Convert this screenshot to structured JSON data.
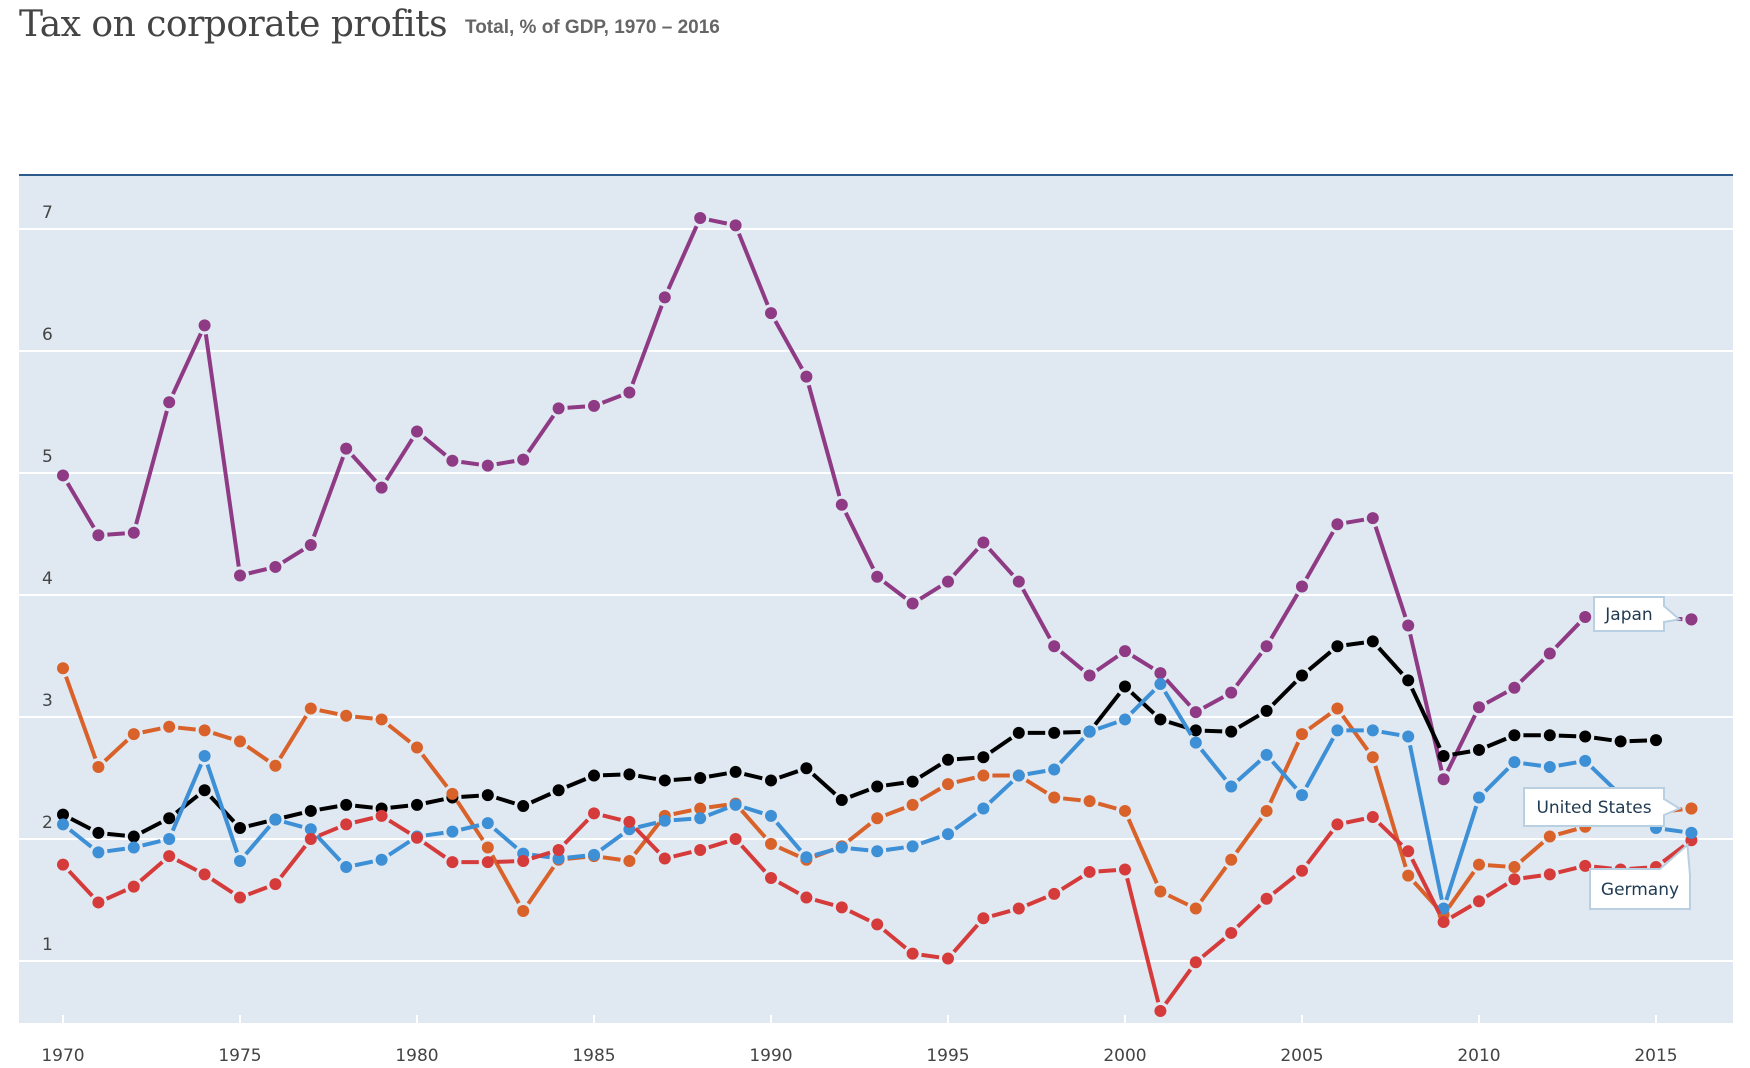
{
  "header": {
    "title": "Tax on corporate profits",
    "subtitle": "Total, % of GDP, 1970 – 2016"
  },
  "colors": {
    "plot_background": "#e0e9f1",
    "top_rule": "#2c5a8a",
    "gridline": "#ffffff",
    "callout_border": "#b9cfe2",
    "callout_text": "#1f3a52"
  },
  "chart_data": {
    "type": "line",
    "title": "Tax on corporate profits",
    "subtitle": "Total, % of GDP, 1970 – 2016",
    "xlabel": "",
    "ylabel": "",
    "xlim": [
      1968.8,
      2017.2
    ],
    "ylim": [
      0.49,
      7.1
    ],
    "grid": true,
    "x_ticks": [
      1970,
      1975,
      1980,
      1985,
      1990,
      1995,
      2000,
      2005,
      2010,
      2015
    ],
    "x_tick_labels": [
      "1970",
      "1975",
      "1980",
      "1985",
      "1990",
      "1995",
      "2000",
      "2005",
      "2010",
      "2015"
    ],
    "y_ticks": [
      1,
      2,
      3,
      4,
      5,
      6,
      7
    ],
    "y_tick_labels": [
      "1",
      "2",
      "3",
      "4",
      "5",
      "6",
      "7"
    ],
    "x_start": 1970,
    "series": [
      {
        "name": "Japan",
        "label": "Japan",
        "color": "#8f3a84",
        "values": [
          4.98,
          4.49,
          4.51,
          5.58,
          6.21,
          4.16,
          4.23,
          4.41,
          5.2,
          4.88,
          5.34,
          5.1,
          5.06,
          5.11,
          5.53,
          5.55,
          5.66,
          6.44,
          7.09,
          7.03,
          6.31,
          5.79,
          4.74,
          4.15,
          3.93,
          4.11,
          4.43,
          4.11,
          3.58,
          3.34,
          3.54,
          3.36,
          3.04,
          3.2,
          3.58,
          4.07,
          4.58,
          4.63,
          3.75,
          2.49,
          3.08,
          3.24,
          3.52,
          3.82,
          3.82,
          3.81,
          3.8
        ]
      },
      {
        "name": "Series (black)",
        "label": "",
        "color": "#000000",
        "values": [
          2.2,
          2.05,
          2.02,
          2.17,
          2.4,
          2.09,
          2.16,
          2.23,
          2.28,
          2.25,
          2.28,
          2.34,
          2.36,
          2.27,
          2.4,
          2.52,
          2.53,
          2.48,
          2.5,
          2.55,
          2.48,
          2.58,
          2.32,
          2.43,
          2.47,
          2.65,
          2.67,
          2.87,
          2.87,
          2.88,
          3.25,
          2.98,
          2.89,
          2.88,
          3.05,
          3.34,
          3.58,
          3.62,
          3.3,
          2.68,
          2.73,
          2.85,
          2.85,
          2.84,
          2.8,
          2.81,
          null
        ]
      },
      {
        "name": "United States",
        "label": "United States",
        "color": "#d9622b",
        "values": [
          3.4,
          2.59,
          2.86,
          2.92,
          2.89,
          2.8,
          2.6,
          3.07,
          3.01,
          2.98,
          2.75,
          2.37,
          1.93,
          1.41,
          1.83,
          1.86,
          1.82,
          2.19,
          2.25,
          2.29,
          1.96,
          1.83,
          1.94,
          2.17,
          2.28,
          2.45,
          2.52,
          2.52,
          2.34,
          2.31,
          2.23,
          1.57,
          1.43,
          1.83,
          2.23,
          2.86,
          3.07,
          2.67,
          1.7,
          1.38,
          1.79,
          1.77,
          2.02,
          2.1,
          2.18,
          2.22,
          2.25
        ]
      },
      {
        "name": "Germany",
        "label": "Germany",
        "color": "#3d8fd6",
        "values": [
          2.12,
          1.89,
          1.93,
          2.0,
          2.68,
          1.82,
          2.16,
          2.08,
          1.77,
          1.83,
          2.02,
          2.06,
          2.13,
          1.88,
          1.84,
          1.87,
          2.08,
          2.15,
          2.17,
          2.28,
          2.19,
          1.85,
          1.93,
          1.9,
          1.94,
          2.04,
          2.25,
          2.52,
          2.57,
          2.88,
          2.98,
          3.27,
          2.79,
          2.43,
          2.69,
          2.36,
          2.89,
          2.89,
          2.84,
          1.43,
          2.34,
          2.63,
          2.59,
          2.64,
          2.36,
          2.09,
          2.05
        ]
      },
      {
        "name": "Series (red)",
        "label": "",
        "color": "#d63b3b",
        "values": [
          1.79,
          1.48,
          1.61,
          1.86,
          1.71,
          1.52,
          1.63,
          2.0,
          2.12,
          2.19,
          2.01,
          1.81,
          1.81,
          1.82,
          1.91,
          2.21,
          2.14,
          1.84,
          1.91,
          2.0,
          1.68,
          1.52,
          1.44,
          1.3,
          1.06,
          1.02,
          1.35,
          1.43,
          1.55,
          1.73,
          1.75,
          0.59,
          0.99,
          1.23,
          1.51,
          1.74,
          2.12,
          2.18,
          1.9,
          1.32,
          1.49,
          1.67,
          1.71,
          1.78,
          1.75,
          1.77,
          1.99
        ]
      }
    ],
    "annotations": [
      {
        "text": "Japan",
        "series": "Japan",
        "point_year": 2016
      },
      {
        "text": "United States",
        "series": "United States",
        "point_year": 2016
      },
      {
        "text": "Germany",
        "series": "Germany",
        "point_year": 2016
      }
    ],
    "legend": "none (direct callout labels at right)"
  }
}
